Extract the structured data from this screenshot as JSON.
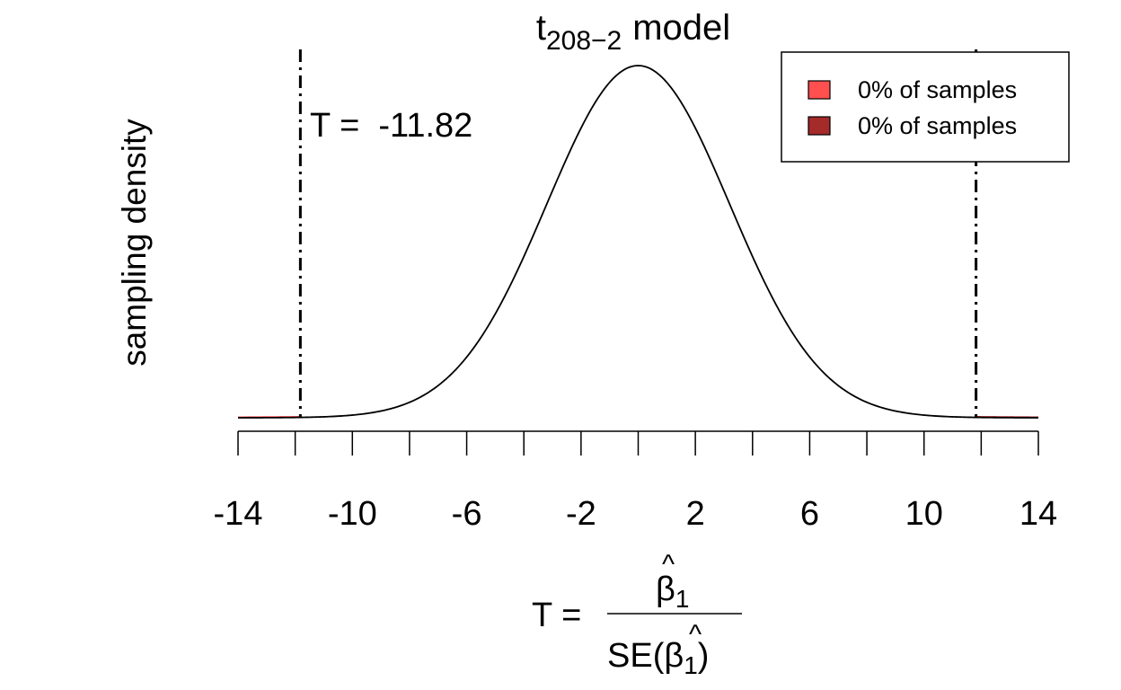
{
  "colors": {
    "curve": "#000000",
    "shade_left": "#ff4f4f",
    "shade_right": "#a52a2a",
    "legend_left": "#ff4f4f",
    "legend_right": "#a52a2a"
  },
  "chart_data": {
    "type": "line",
    "title": {
      "main": "t",
      "subscript": "208−2",
      "suffix": "model"
    },
    "ylabel": "sampling density",
    "xlabel": {
      "prefix": "T =",
      "numerator": "β",
      "numerator_hat": "^",
      "numerator_sub": "1",
      "denominator_prefix": "SE(",
      "denominator_beta": "β",
      "denominator_hat": "^",
      "denominator_sub": "1",
      "denominator_suffix": ")"
    },
    "xlim": [
      -14,
      14
    ],
    "x_ticks": [
      -14,
      -12,
      -10,
      -8,
      -6,
      -4,
      -2,
      0,
      2,
      4,
      6,
      8,
      10,
      12,
      14
    ],
    "x_tick_labels": [
      {
        "value": -14,
        "label": "-14"
      },
      {
        "value": -10,
        "label": "-10"
      },
      {
        "value": -6,
        "label": "-6"
      },
      {
        "value": -2,
        "label": "-2"
      },
      {
        "value": 2,
        "label": "2"
      },
      {
        "value": 6,
        "label": "6"
      },
      {
        "value": 10,
        "label": "10"
      },
      {
        "value": 14,
        "label": "14"
      }
    ],
    "peak_x": 0,
    "curve_sd": 3.2,
    "observed_T": -11.82,
    "observed_T_abs": 11.82,
    "annotation": "T =  -11.82",
    "shaded_regions": [
      {
        "from": -14,
        "to": -11.82,
        "color_key": "shade_left"
      },
      {
        "from": 11.82,
        "to": 14,
        "color_key": "shade_right"
      }
    ],
    "legend": {
      "placement": "top-right",
      "entries": [
        {
          "label": "0% of samples",
          "color_key": "legend_left"
        },
        {
          "label": "0% of samples",
          "color_key": "legend_right"
        }
      ]
    },
    "grid": false
  }
}
